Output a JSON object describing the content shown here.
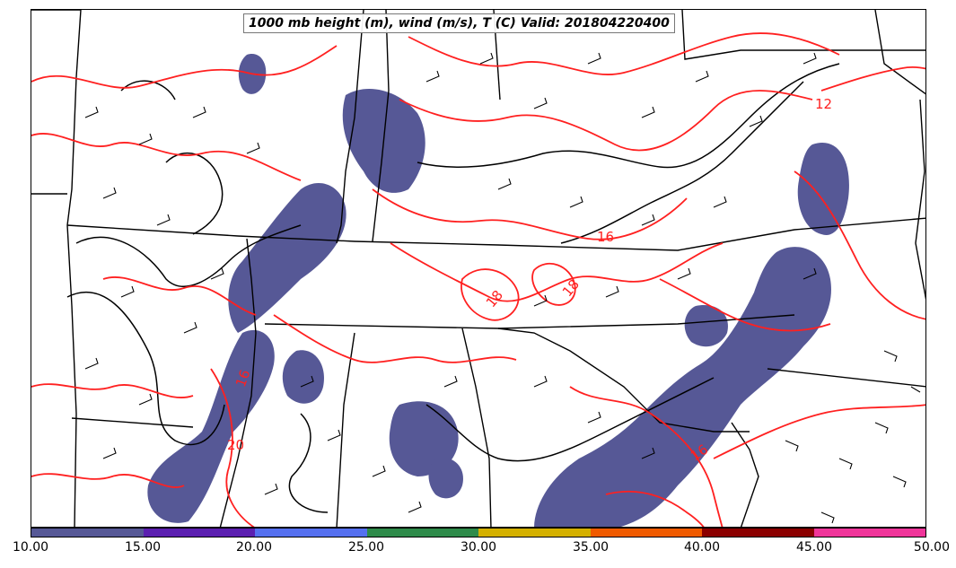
{
  "title": "1000 mb height (m), wind (m/s), T (C) Valid: 201804220400",
  "colorbar": {
    "ticks": [
      "10.00",
      "15.00",
      "20.00",
      "25.00",
      "30.00",
      "35.00",
      "40.00",
      "45.00",
      "50.00"
    ],
    "colors": [
      "#565896",
      "#5b1fb0",
      "#5570f0",
      "#2e8b4a",
      "#d4b000",
      "#f05a00",
      "#8b0000",
      "#f0359a"
    ]
  },
  "contour_labels": [
    {
      "text": "12",
      "color": "#ff2020"
    },
    {
      "text": "16",
      "color": "#ff2020"
    },
    {
      "text": "18",
      "color": "#ff2020"
    },
    {
      "text": "18",
      "color": "#ff2020"
    },
    {
      "text": "16",
      "color": "#ff2020"
    },
    {
      "text": "20",
      "color": "#ff2020"
    },
    {
      "text": "16",
      "color": "#ff2020"
    }
  ],
  "colors": {
    "temperature_contour": "#ff2020",
    "height_contour": "#000000",
    "precip_fill": "#565896",
    "boundaries": "#000000"
  }
}
